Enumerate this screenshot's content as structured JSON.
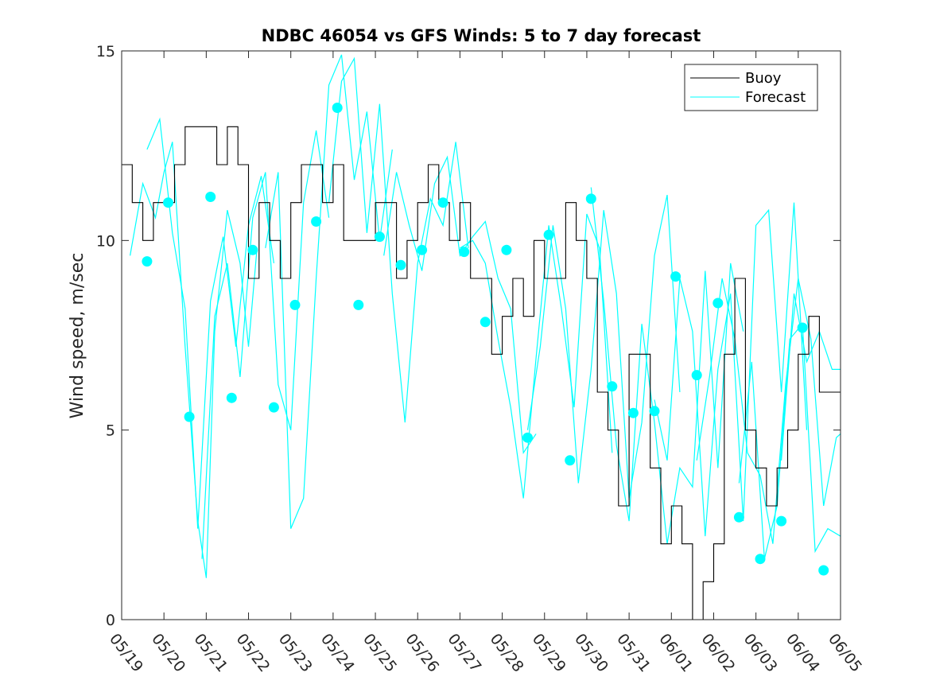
{
  "chart_data": {
    "type": "line",
    "title": "NDBC 46054 vs GFS Winds: 5 to 7 day forecast",
    "xlabel": "",
    "ylabel": "Wind speed, m/sec",
    "x_ticks": [
      "05/19",
      "05/20",
      "05/21",
      "05/22",
      "05/23",
      "05/24",
      "05/25",
      "05/26",
      "05/27",
      "05/28",
      "05/29",
      "05/30",
      "05/31",
      "06/01",
      "06/02",
      "06/03",
      "06/04",
      "06/05"
    ],
    "xlim_days": [
      0,
      17
    ],
    "ylim": [
      0,
      15
    ],
    "y_ticks": [
      "0",
      "5",
      "10",
      "15"
    ],
    "grid": false,
    "legend_position": "top-right",
    "colors": {
      "buoy": "#000000",
      "forecast": "#00ffff",
      "axes": "#262626"
    },
    "series": [
      {
        "name": "Buoy",
        "kind": "step",
        "x_days": [
          0.0,
          0.25,
          0.5,
          0.75,
          1.0,
          1.25,
          1.5,
          1.75,
          2.0,
          2.25,
          2.5,
          2.75,
          3.0,
          3.25,
          3.5,
          3.75,
          4.0,
          4.25,
          4.5,
          4.75,
          5.0,
          5.25,
          5.5,
          5.75,
          6.0,
          6.25,
          6.5,
          6.75,
          7.0,
          7.25,
          7.5,
          7.75,
          8.0,
          8.25,
          8.5,
          8.75,
          9.0,
          9.25,
          9.5,
          9.75,
          10.0,
          10.25,
          10.5,
          10.75,
          11.0,
          11.25,
          11.5,
          11.75,
          12.0,
          12.25,
          12.5,
          12.75,
          13.0,
          13.25,
          13.5,
          13.75,
          14.0,
          14.25,
          14.5,
          14.75,
          15.0,
          15.25,
          15.5,
          15.75,
          16.0,
          16.25,
          16.5,
          16.75,
          17.0
        ],
        "values": [
          12,
          11,
          10,
          11,
          11,
          12,
          13,
          13,
          13,
          12,
          13,
          12,
          9,
          11,
          10,
          9,
          11,
          12,
          12,
          11,
          12,
          10,
          10,
          10,
          11,
          11,
          9,
          10,
          11,
          12,
          11,
          10,
          11,
          9,
          9,
          7,
          8,
          9,
          8,
          10,
          9,
          9,
          11,
          10,
          9,
          6,
          5,
          3,
          7,
          7,
          4,
          2,
          3,
          2,
          0,
          1,
          2,
          7,
          9,
          5,
          4,
          3,
          4,
          5,
          7,
          8,
          6,
          6,
          6
        ]
      },
      {
        "name": "Forecast",
        "kind": "line",
        "segments": [
          {
            "x_days": [
              0.2,
              0.5,
              0.8,
              1.0,
              1.2,
              1.5,
              1.8,
              2.0,
              2.2,
              2.5,
              2.8,
              3.0,
              3.2
            ],
            "values": [
              9.6,
              11.5,
              10.6,
              11.8,
              12.6,
              7.2,
              2.6,
              1.1,
              7.6,
              10.8,
              9.4,
              7.2,
              9.8
            ]
          },
          {
            "x_days": [
              0.6,
              0.9,
              1.2,
              1.5,
              1.8,
              2.1,
              2.4,
              2.7,
              3.0,
              3.3,
              3.6
            ],
            "values": [
              12.4,
              13.2,
              10.2,
              8.2,
              2.4,
              8.4,
              10.1,
              7.2,
              10.4,
              11.7,
              9.4
            ]
          },
          {
            "x_days": [
              1.9,
              2.2,
              2.5,
              2.8,
              3.1,
              3.4,
              3.7,
              4.0,
              4.3,
              4.6,
              4.9
            ],
            "values": [
              1.6,
              8.0,
              9.4,
              6.4,
              10.6,
              11.8,
              6.2,
              5.0,
              11.0,
              12.9,
              10.6
            ]
          },
          {
            "x_days": [
              3.4,
              3.7,
              4.0,
              4.3,
              4.6,
              4.9,
              5.2,
              5.5,
              5.8,
              6.1,
              6.4
            ],
            "values": [
              9.8,
              11.8,
              2.4,
              3.2,
              9.0,
              14.1,
              14.9,
              11.6,
              13.4,
              10.0,
              12.4
            ]
          },
          {
            "x_days": [
              4.9,
              5.2,
              5.5,
              5.8,
              6.1,
              6.4,
              6.7,
              7.0,
              7.3,
              7.6,
              7.9,
              8.2
            ],
            "values": [
              11.0,
              14.2,
              14.8,
              10.2,
              13.6,
              8.6,
              5.2,
              9.4,
              11.1,
              10.4,
              12.6,
              9.8
            ]
          },
          {
            "x_days": [
              6.2,
              6.5,
              6.8,
              7.1,
              7.4,
              7.7,
              8.0,
              8.3,
              8.6,
              8.9,
              9.2,
              9.5,
              9.8
            ],
            "values": [
              9.6,
              11.8,
              10.4,
              9.2,
              11.5,
              12.2,
              9.6,
              10.1,
              10.5,
              9.0,
              8.2,
              4.4,
              4.9
            ]
          },
          {
            "x_days": [
              8.0,
              8.3,
              8.6,
              8.9,
              9.2,
              9.5,
              9.8,
              10.1,
              10.4,
              10.7,
              11.0,
              11.3,
              11.6
            ],
            "values": [
              9.8,
              10.0,
              9.4,
              7.4,
              5.6,
              3.2,
              6.9,
              10.4,
              8.2,
              5.6,
              10.7,
              9.8,
              4.4
            ]
          },
          {
            "x_days": [
              9.6,
              9.9,
              10.2,
              10.5,
              10.8,
              11.1,
              11.4,
              11.7,
              12.0,
              12.3,
              12.6,
              12.9,
              13.2
            ],
            "values": [
              5.0,
              7.2,
              10.4,
              8.2,
              3.6,
              6.6,
              10.8,
              8.6,
              3.2,
              5.2,
              9.6,
              11.2,
              6.0
            ]
          },
          {
            "x_days": [
              11.1,
              11.4,
              11.7,
              12.0,
              12.3,
              12.6,
              12.9,
              13.2,
              13.5,
              13.8,
              14.1,
              14.4,
              14.7
            ],
            "values": [
              11.4,
              8.4,
              4.6,
              2.6,
              7.8,
              5.2,
              2.0,
              4.0,
              3.5,
              9.2,
              4.0,
              9.4,
              7.6
            ]
          },
          {
            "x_days": [
              12.6,
              12.9,
              13.2,
              13.5,
              13.8,
              14.1,
              14.4,
              14.7,
              15.0,
              15.3,
              15.6,
              15.9,
              16.2
            ],
            "values": [
              5.8,
              4.2,
              9.0,
              7.6,
              2.2,
              6.6,
              8.6,
              2.6,
              10.4,
              10.8,
              6.0,
              11.0,
              5.0
            ]
          },
          {
            "x_days": [
              13.6,
              13.9,
              14.2,
              14.5,
              14.8,
              15.1,
              15.4,
              15.7,
              16.0,
              16.3,
              16.6,
              16.9,
              17.0
            ],
            "values": [
              4.2,
              6.4,
              9.0,
              7.4,
              4.4,
              3.8,
              2.0,
              6.2,
              9.0,
              7.4,
              3.0,
              4.8,
              4.9
            ]
          },
          {
            "x_days": [
              14.6,
              14.9,
              15.2,
              15.5,
              15.8,
              16.1,
              16.4,
              16.7,
              17.0
            ],
            "values": [
              3.6,
              6.8,
              1.6,
              3.0,
              7.4,
              7.8,
              1.8,
              2.4,
              2.2
            ]
          },
          {
            "x_days": [
              15.6,
              15.9,
              16.2,
              16.5,
              16.8,
              17.0
            ],
            "values": [
              4.2,
              8.6,
              6.8,
              7.6,
              6.6,
              6.6
            ]
          }
        ],
        "markers": {
          "x_days": [
            0.6,
            1.1,
            1.6,
            2.1,
            2.6,
            3.1,
            3.6,
            4.1,
            4.6,
            5.1,
            5.6,
            6.1,
            6.6,
            7.1,
            7.6,
            8.1,
            8.6,
            9.1,
            9.6,
            10.1,
            10.6,
            11.1,
            11.6,
            12.1,
            12.6,
            13.1,
            13.6,
            14.1,
            14.6,
            15.1,
            15.6,
            16.1,
            16.6
          ],
          "values": [
            9.45,
            11.0,
            5.35,
            11.15,
            5.85,
            9.75,
            5.6,
            8.3,
            10.5,
            13.5,
            8.3,
            10.1,
            9.35,
            9.75,
            11.0,
            9.7,
            7.85,
            9.75,
            4.8,
            10.15,
            4.2,
            11.1,
            6.15,
            5.45,
            5.5,
            9.05,
            6.45,
            8.35,
            2.7,
            1.6,
            2.6,
            7.7,
            1.3
          ]
        }
      }
    ]
  }
}
